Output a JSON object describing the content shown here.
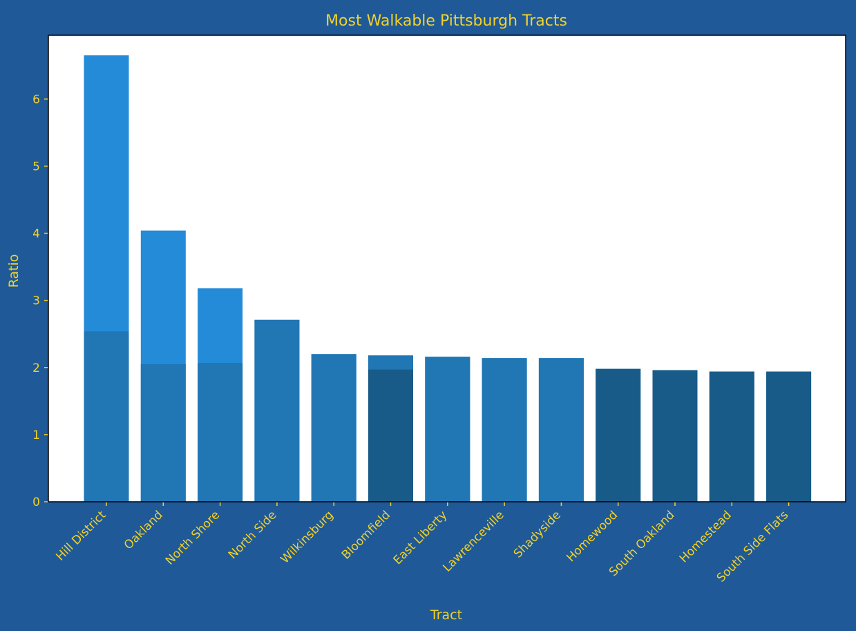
{
  "chart_data": {
    "type": "bar",
    "title": "Most Walkable Pittsburgh Tracts",
    "xlabel": "Tract",
    "ylabel": "Ratio",
    "ylim": [
      0,
      6.95
    ],
    "yticks": [
      0,
      1,
      2,
      3,
      4,
      5,
      6
    ],
    "grid": false,
    "categories": [
      "Hill District",
      "Oakland",
      "North Shore",
      "North Side",
      "Wilkinsburg",
      "Bloomfield",
      "East Liberty",
      "Lawrenceville",
      "Shadyside",
      "Homewood",
      "South Oakland",
      "Homestead",
      "South Side Flats"
    ],
    "series": [
      {
        "values": [
          6.65,
          4.04,
          3.18,
          2.71,
          2.2,
          2.18,
          2.16,
          2.14,
          2.14,
          1.98,
          1.96,
          1.94,
          1.94
        ],
        "color": "#248bd8"
      },
      {
        "values": [
          2.54,
          2.05,
          2.07,
          2.71,
          2.2,
          2.18,
          2.16,
          2.14,
          2.14,
          null,
          null,
          null,
          null
        ],
        "color": "#2176b4"
      },
      {
        "values": [
          null,
          null,
          null,
          null,
          null,
          1.97,
          null,
          null,
          null,
          1.98,
          1.96,
          1.94,
          1.94
        ],
        "color": "#185b88"
      }
    ]
  },
  "colors": {
    "background": "#1f5998",
    "plot_background": "#ffffff",
    "text": "#f2d22a",
    "axis": "#000000"
  }
}
